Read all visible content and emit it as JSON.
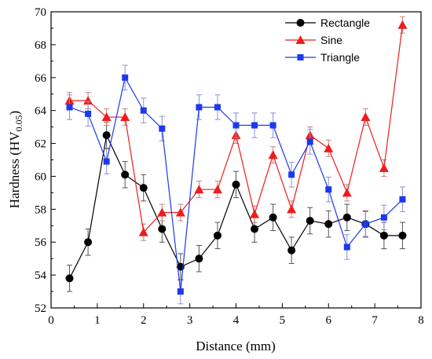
{
  "chart_data": {
    "type": "line",
    "xlabel": "Distance (mm)",
    "ylabel": "Hardness (HV",
    "ylabel_sub": "0.05",
    "ylabel_close": ")",
    "xlim": [
      0,
      8
    ],
    "ylim": [
      52,
      70
    ],
    "xticks": [
      0,
      1,
      2,
      3,
      4,
      5,
      6,
      7,
      8
    ],
    "yticks": [
      52,
      54,
      56,
      58,
      60,
      62,
      64,
      66,
      68,
      70
    ],
    "grid": false,
    "legend_position": "top-right",
    "series": [
      {
        "name": "Rectangle",
        "color": "#000000",
        "marker": "circle",
        "x": [
          0.4,
          0.8,
          1.2,
          1.6,
          2.0,
          2.4,
          2.8,
          3.2,
          3.6,
          4.0,
          4.4,
          4.8,
          5.2,
          5.6,
          6.0,
          6.4,
          6.8,
          7.2,
          7.6
        ],
        "y": [
          53.8,
          56.0,
          62.5,
          60.1,
          59.3,
          56.8,
          54.5,
          55.0,
          56.4,
          59.5,
          56.8,
          57.5,
          55.5,
          57.3,
          57.1,
          57.5,
          57.1,
          56.4,
          56.4
        ],
        "err": [
          0.8,
          0.8,
          0.8,
          0.8,
          0.8,
          0.8,
          0.8,
          0.8,
          0.8,
          0.8,
          0.8,
          0.8,
          0.8,
          0.8,
          0.8,
          0.8,
          0.8,
          0.8,
          0.8
        ]
      },
      {
        "name": "Sine",
        "color": "#ee1c1c",
        "marker": "triangle",
        "x": [
          0.4,
          0.8,
          1.2,
          1.6,
          2.0,
          2.4,
          2.8,
          3.2,
          3.6,
          4.0,
          4.4,
          4.8,
          5.2,
          5.6,
          6.0,
          6.4,
          6.8,
          7.2,
          7.6
        ],
        "y": [
          64.6,
          64.6,
          63.6,
          63.6,
          56.6,
          57.8,
          57.8,
          59.2,
          59.2,
          62.5,
          57.7,
          61.3,
          58.0,
          62.5,
          61.7,
          59.0,
          63.6,
          60.5,
          69.2
        ],
        "err": [
          0.5,
          0.5,
          0.5,
          0.5,
          0.5,
          0.5,
          0.5,
          0.5,
          0.5,
          0.5,
          0.5,
          0.5,
          0.5,
          0.5,
          0.5,
          0.5,
          0.5,
          0.5,
          0.5
        ]
      },
      {
        "name": "Triangle",
        "color": "#1c39ee",
        "marker": "square",
        "x": [
          0.4,
          0.8,
          1.2,
          1.6,
          2.0,
          2.4,
          2.8,
          3.2,
          3.6,
          4.0,
          4.4,
          4.8,
          5.2,
          5.6,
          6.0,
          6.4,
          6.8,
          7.2,
          7.6
        ],
        "y": [
          64.2,
          63.8,
          60.9,
          66.0,
          64.0,
          62.9,
          53.0,
          64.2,
          64.2,
          63.1,
          63.1,
          63.1,
          60.1,
          62.1,
          59.2,
          55.7,
          57.1,
          57.5,
          58.6
        ],
        "err": [
          0.75,
          0.75,
          0.75,
          0.75,
          0.75,
          0.75,
          0.75,
          0.75,
          0.75,
          0.75,
          0.75,
          0.75,
          0.75,
          0.75,
          0.75,
          0.75,
          0.75,
          0.75,
          0.75
        ]
      }
    ]
  }
}
